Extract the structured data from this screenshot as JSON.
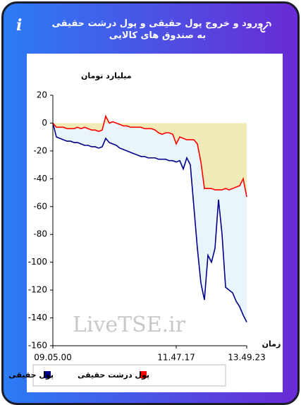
{
  "header": {
    "title": "ورود و خروج پول حقیقی و پول درشت حقیقی به صندوق های کالایی",
    "info_icon": "i"
  },
  "watermark": "LiveTSE.ir",
  "chart_data": {
    "type": "area",
    "y_label": "میلیارد تومان",
    "x_label": "زمان",
    "categories": [
      "09.05.00",
      null,
      null,
      null,
      null,
      null,
      null,
      null,
      null,
      null,
      null,
      null,
      null,
      null,
      null,
      null,
      null,
      null,
      null,
      null,
      null,
      null,
      null,
      null,
      null,
      null,
      null,
      null,
      null,
      null,
      null,
      null,
      null,
      null,
      null,
      "11.47.17",
      null,
      null,
      null,
      null,
      null,
      null,
      null,
      null,
      null,
      null,
      null,
      null,
      null,
      null,
      null,
      null,
      null,
      null,
      null,
      "13.49.23"
    ],
    "series": [
      {
        "name": "پول حقیقی",
        "color": "#00008b",
        "area_color": "#e9f4fb",
        "values": [
          0,
          -10,
          -11,
          -12,
          -13,
          -13,
          -14,
          -14,
          -15,
          -16,
          -16,
          -17,
          -17,
          -18,
          -17,
          -11,
          -14,
          -15,
          -16,
          -18,
          -19,
          -20,
          -21,
          -22,
          -23,
          -24,
          -24,
          -25,
          -25,
          -25,
          -26,
          -26,
          -26,
          -27,
          -27,
          -28,
          -27,
          -33,
          -25,
          -30,
          -60,
          -90,
          -115,
          -127,
          -95,
          -100,
          -90,
          -55,
          -80,
          -118,
          -120,
          -122,
          -128,
          -132,
          -138,
          -143
        ]
      },
      {
        "name": "پول درشت حقیقی",
        "color": "#ff0000",
        "area_color": "#f0ebb8",
        "values": [
          0,
          -3,
          -3,
          -3,
          -4,
          -4,
          -4,
          -3,
          -4,
          -3,
          -4,
          -5,
          -5,
          -6,
          -5,
          5,
          0,
          1,
          0,
          -1,
          -2,
          -2,
          -3,
          -3,
          -3,
          -3,
          -4,
          -4,
          -4,
          -5,
          -7,
          -8,
          -7,
          -7,
          -8,
          -15,
          -10,
          -11,
          -12,
          -12,
          -12,
          -15,
          -28,
          -47,
          -47,
          -47,
          -48,
          -48,
          -48,
          -47,
          -48,
          -47,
          -46,
          -45,
          -40,
          -53
        ]
      }
    ],
    "ylim": [
      -160,
      20
    ],
    "yticks": [
      20,
      0,
      -20,
      -40,
      -60,
      -80,
      -100,
      -120,
      -140,
      -160
    ]
  }
}
